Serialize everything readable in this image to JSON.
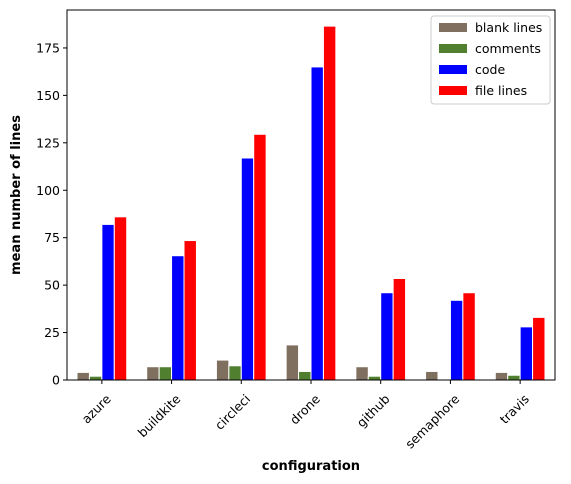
{
  "chart_data": {
    "type": "bar",
    "title": "",
    "xlabel": "configuration",
    "ylabel": "mean number of lines",
    "categories": [
      "azure",
      "buildkite",
      "circleci",
      "drone",
      "github",
      "semaphore",
      "travis"
    ],
    "series": [
      {
        "name": "blank lines",
        "color": "#7f6f5f",
        "values": [
          4,
          7,
          10.5,
          18.5,
          7,
          4.5,
          4
        ]
      },
      {
        "name": "comments",
        "color": "#4f7f2f",
        "values": [
          2,
          7,
          7.5,
          4.5,
          2,
          0,
          2.5
        ]
      },
      {
        "name": "code",
        "color": "#0000ff",
        "values": [
          82,
          65.5,
          117,
          165,
          46,
          42,
          28
        ]
      },
      {
        "name": "file lines",
        "color": "#ff0000",
        "values": [
          86,
          73.5,
          129.5,
          186.5,
          53.5,
          46,
          33
        ]
      }
    ],
    "ylim": [
      0,
      195
    ],
    "yticks": [
      0,
      25,
      50,
      75,
      100,
      125,
      150,
      175
    ],
    "grid": false,
    "legend_position": "top-right"
  }
}
